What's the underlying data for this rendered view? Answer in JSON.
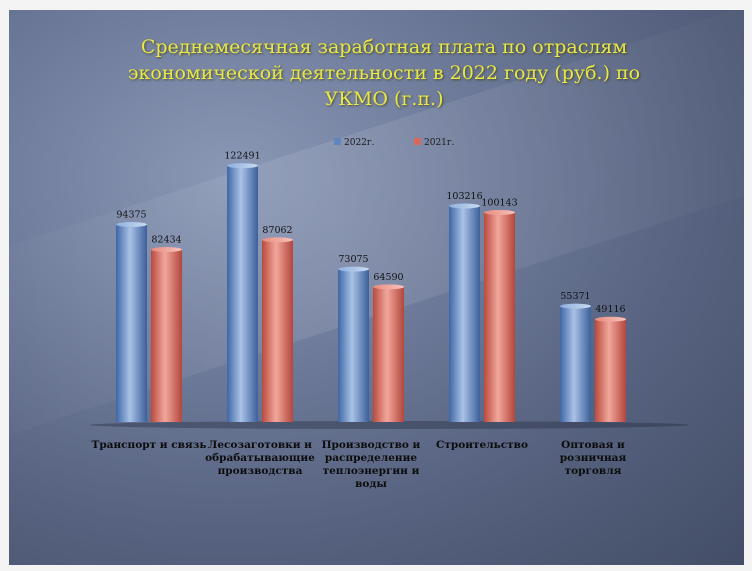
{
  "colors": {
    "series_blue": "#5f86bf",
    "series_red": "#d9685c",
    "title": "#e9e64a",
    "background": "#5f6b88"
  },
  "chart_data": {
    "type": "bar",
    "title": "Среднемесячная заработная плата по отраслям экономической деятельности в 2022 году (руб.) по УКМО (г.п.)",
    "xlabel": "",
    "ylabel": "",
    "ylim": [
      0,
      130000
    ],
    "grid": false,
    "legend_position": "top",
    "categories": [
      "Транспорт и связь",
      "Лесозаготовки и обрабатывающие производства",
      "Производство и распределение теплоэнергии и воды",
      "Строительство",
      "Оптовая и розничная торговля"
    ],
    "series": [
      {
        "name": "2022г.",
        "values": [
          94375,
          122491,
          73075,
          103216,
          55371
        ]
      },
      {
        "name": "2021г.",
        "values": [
          82434,
          87062,
          64590,
          100143,
          49116
        ]
      }
    ]
  }
}
